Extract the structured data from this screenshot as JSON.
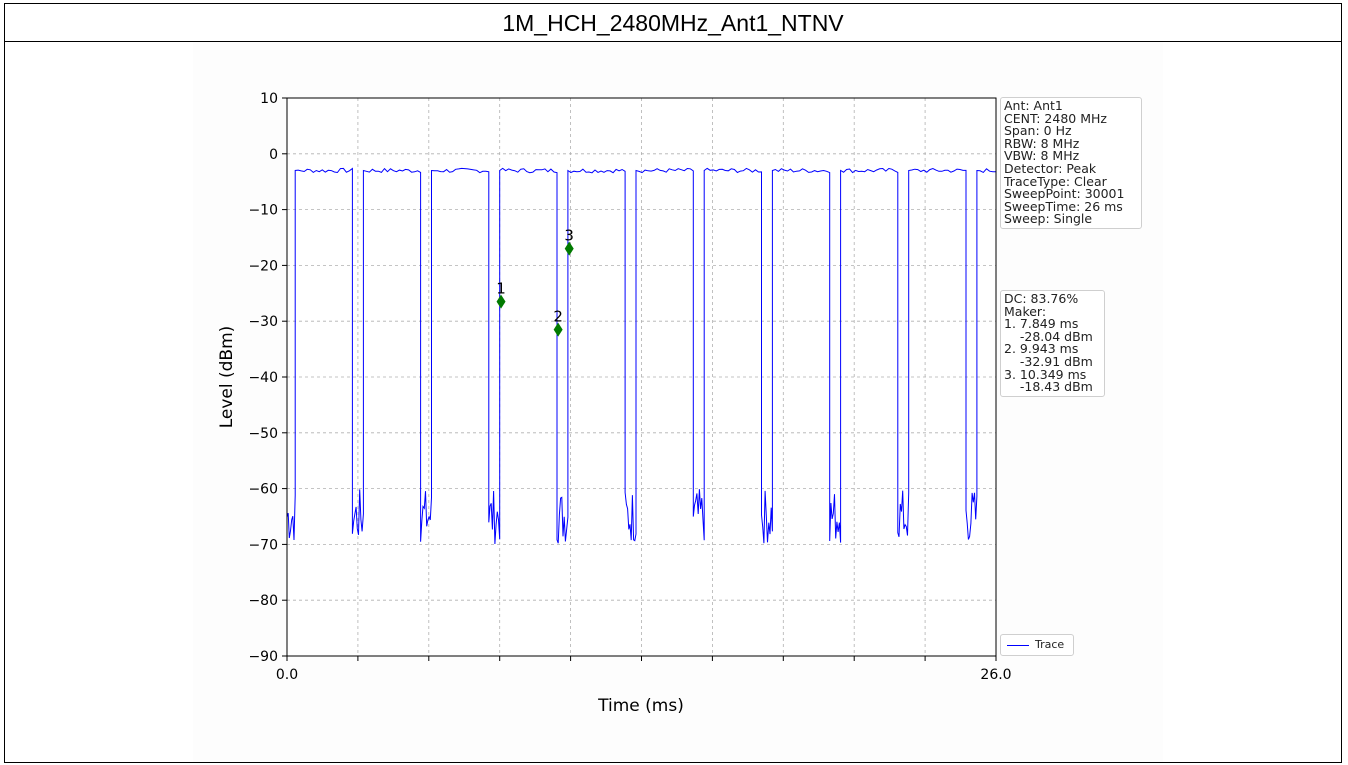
{
  "page": {
    "title": "1M_HCH_2480MHz_Ant1_NTNV"
  },
  "info_box": {
    "lines": [
      "Ant: Ant1",
      "CENT: 2480 MHz",
      "Span: 0 Hz",
      "RBW: 8 MHz",
      "VBW: 8 MHz",
      "Detector: Peak",
      "TraceType: Clear",
      "SweepPoint: 30001",
      "SweepTime: 26 ms",
      "Sweep: Single"
    ]
  },
  "marker_box": {
    "lines": [
      "DC: 83.76%",
      "Maker:",
      "1. 7.849 ms",
      "    -28.04 dBm",
      "2. 9.943 ms",
      "    -32.91 dBm",
      "3. 10.349 ms",
      "    -18.43 dBm"
    ]
  },
  "chart_data": {
    "type": "line",
    "title": "",
    "xlabel": "Time (ms)",
    "ylabel": "Level (dBm)",
    "xlim": [
      0,
      26
    ],
    "ylim": [
      -90,
      10
    ],
    "x_tick_labels": [
      "0.0",
      "26.0"
    ],
    "x_grid_positions": [
      0,
      2.6,
      5.2,
      7.8,
      10.4,
      13.0,
      15.6,
      18.2,
      20.8,
      23.4,
      26.0
    ],
    "y_ticks": [
      10,
      0,
      -10,
      -20,
      -30,
      -40,
      -50,
      -60,
      -70,
      -80,
      -90
    ],
    "y_tick_labels": [
      "10",
      "0",
      "−10",
      "−20",
      "−30",
      "−40",
      "−50",
      "−60",
      "−70",
      "−80",
      "−90"
    ],
    "grid": true,
    "legend": {
      "position": "bottom-right",
      "entries": [
        "Trace"
      ]
    },
    "series": [
      {
        "name": "Trace",
        "color": "#0000ff",
        "on_level": -3,
        "off_level": -65,
        "on_intervals": [
          [
            0.3,
            2.4
          ],
          [
            2.8,
            4.9
          ],
          [
            5.3,
            7.4
          ],
          [
            7.8,
            9.9
          ],
          [
            10.3,
            12.4
          ],
          [
            12.8,
            14.9
          ],
          [
            15.3,
            17.4
          ],
          [
            17.8,
            19.9
          ],
          [
            20.3,
            22.4
          ],
          [
            22.8,
            24.9
          ],
          [
            25.3,
            26.0
          ]
        ]
      }
    ],
    "markers": [
      {
        "label": "1",
        "x": 7.849,
        "y": -26.5,
        "color": "#007a00"
      },
      {
        "label": "2",
        "x": 9.943,
        "y": -31.5,
        "color": "#007a00"
      },
      {
        "label": "3",
        "x": 10.349,
        "y": -17.0,
        "color": "#007a00"
      }
    ]
  }
}
